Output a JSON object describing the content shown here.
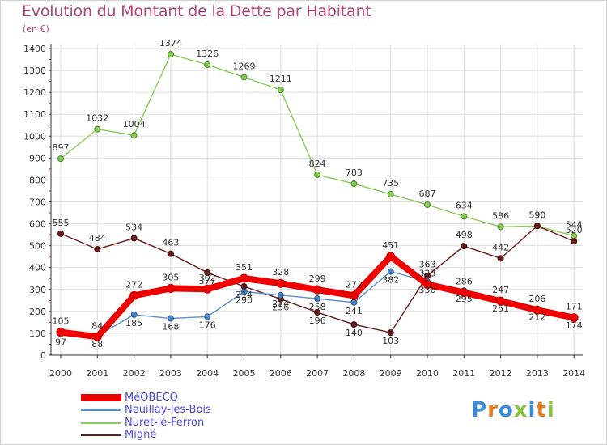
{
  "title": "Evolution du Montant de la Dette par Habitant",
  "unit_label": "(en €)",
  "logo_text": "Proxiti",
  "colors": {
    "title": "#b5447b",
    "legend_text": "#4a4ae0",
    "grid": "#dddddd"
  },
  "chart_data": {
    "type": "line",
    "title": "Evolution du Montant de la Dette par Habitant",
    "ylabel": "(en €)",
    "xlabel": "",
    "x": [
      "2000",
      "2001",
      "2002",
      "2003",
      "2004",
      "2005",
      "2006",
      "2007",
      "2008",
      "2009",
      "2010",
      "2011",
      "2012",
      "2013",
      "2014"
    ],
    "ylim": [
      0,
      1400
    ],
    "yticks": [
      0,
      100,
      200,
      300,
      400,
      500,
      600,
      700,
      800,
      900,
      1000,
      1100,
      1200,
      1300,
      1400
    ],
    "grid": true,
    "legend_position": "bottom-left",
    "series": [
      {
        "name": "MéOBECQ",
        "color": "#ee0000",
        "values": [
          105,
          84,
          272,
          305,
          302,
          351,
          328,
          299,
          272,
          451,
          323,
          286,
          247,
          206,
          171
        ]
      },
      {
        "name": "Neuillay-les-Bois",
        "color": "#5b8fd0",
        "values": [
          97,
          88,
          185,
          168,
          176,
          290,
          274,
          258,
          241,
          382,
          336,
          295,
          251,
          212,
          174
        ]
      },
      {
        "name": "Nuret-le-Ferron",
        "color": "#88cc55",
        "values": [
          897,
          1032,
          1004,
          1374,
          1326,
          1269,
          1211,
          824,
          783,
          735,
          687,
          634,
          586,
          590,
          544
        ]
      },
      {
        "name": "Migné",
        "color": "#6b1a1a",
        "values": [
          555,
          484,
          534,
          463,
          377,
          314,
          256,
          196,
          140,
          103,
          363,
          498,
          442,
          590,
          520
        ]
      }
    ]
  }
}
